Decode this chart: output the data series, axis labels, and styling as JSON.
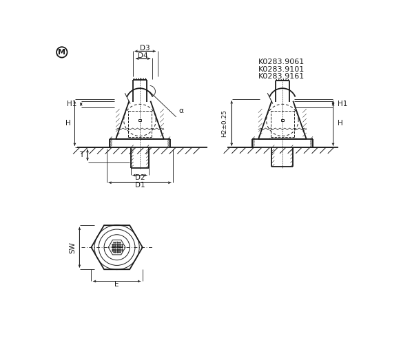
{
  "bg_color": "#ffffff",
  "line_color": "#1a1a1a",
  "part_numbers": [
    "K0283.9061",
    "K0283.9101",
    "K0283.9161"
  ],
  "M_symbol": "M",
  "labels_left": [
    "H1",
    "H",
    "T",
    "D3",
    "D4",
    "D2",
    "D1"
  ],
  "labels_right": [
    "H1",
    "H",
    "H2±0.25"
  ],
  "labels_bottom": [
    "SW",
    "E"
  ],
  "alpha_label": "α"
}
